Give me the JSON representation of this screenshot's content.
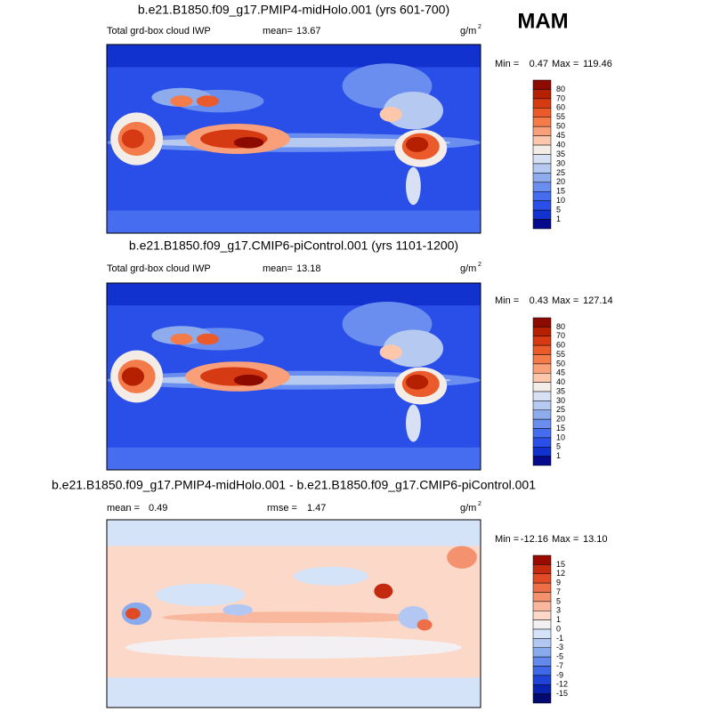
{
  "season": "MAM",
  "panels": [
    {
      "title": "b.e21.B1850.f09_g17.PMIP4-midHolo.001 (yrs 601-700)",
      "variable": "Total grd-box cloud IWP",
      "mean_label": "mean=",
      "mean": "13.67",
      "units": "g/m",
      "units_exp": "2",
      "min_label": "Min =",
      "min": "0.47",
      "max_label": "Max =",
      "max": "119.46",
      "colorbar": {
        "labels": [
          80,
          70,
          60,
          55,
          50,
          45,
          40,
          35,
          30,
          25,
          20,
          15,
          10,
          5,
          1
        ],
        "colors": [
          "#8c0a00",
          "#b52000",
          "#d63a13",
          "#ea5a2a",
          "#f47b4a",
          "#f9a07a",
          "#fcc7ab",
          "#f4ece6",
          "#d7e1f3",
          "#b6c9f0",
          "#8eacec",
          "#6a8ef0",
          "#466cf0",
          "#2a4fe8",
          "#1232d0",
          "#050a8c"
        ]
      }
    },
    {
      "title": "b.e21.B1850.f09_g17.CMIP6-piControl.001 (yrs 1101-1200)",
      "variable": "Total grd-box cloud IWP",
      "mean_label": "mean=",
      "mean": "13.18",
      "units": "g/m",
      "units_exp": "2",
      "min_label": "Min =",
      "min": "0.43",
      "max_label": "Max =",
      "max": "127.14",
      "colorbar": {
        "labels": [
          80,
          70,
          60,
          55,
          50,
          45,
          40,
          35,
          30,
          25,
          20,
          15,
          10,
          5,
          1
        ],
        "colors": [
          "#8c0a00",
          "#b52000",
          "#d63a13",
          "#ea5a2a",
          "#f47b4a",
          "#f9a07a",
          "#fcc7ab",
          "#f4ece6",
          "#d7e1f3",
          "#b6c9f0",
          "#8eacec",
          "#6a8ef0",
          "#466cf0",
          "#2a4fe8",
          "#1232d0",
          "#050a8c"
        ]
      }
    },
    {
      "title": "b.e21.B1850.f09_g17.PMIP4-midHolo.001 - b.e21.B1850.f09_g17.CMIP6-piControl.001",
      "mean_label": "mean =",
      "mean": "0.49",
      "rmse_label": "rmse =",
      "rmse": "1.47",
      "units": "g/m",
      "units_exp": "2",
      "min_label": "Min =",
      "min": "-12.16",
      "max_label": "Max =",
      "max": "13.10",
      "colorbar": {
        "labels": [
          15,
          12,
          9,
          7,
          5,
          3,
          1,
          0,
          -1,
          -3,
          -5,
          -7,
          -9,
          -12,
          -15
        ],
        "colors": [
          "#9a0a00",
          "#c42a10",
          "#e04a25",
          "#ee6e48",
          "#f4926f",
          "#f9b89e",
          "#fbd8c8",
          "#f2f0f2",
          "#d5e3f8",
          "#b2c8f3",
          "#8aaaee",
          "#6489ec",
          "#3f68e8",
          "#1e43d6",
          "#0a22b0",
          "#020a70"
        ]
      }
    }
  ]
}
